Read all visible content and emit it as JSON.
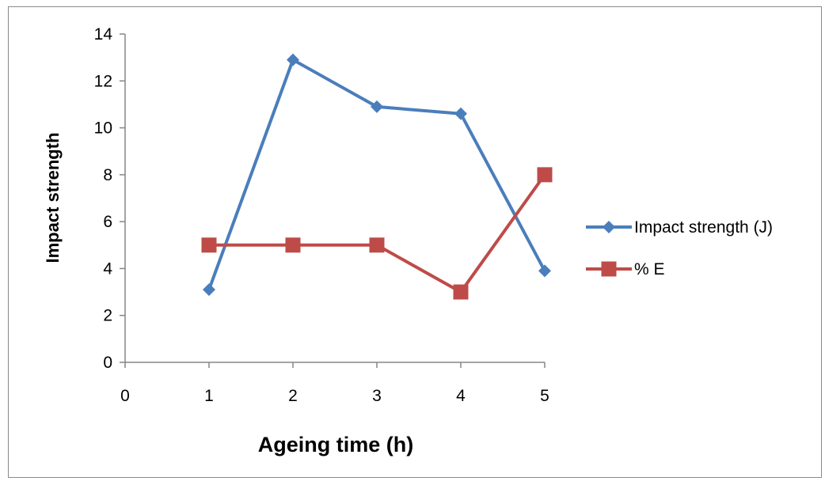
{
  "chart_data": {
    "type": "line",
    "xlabel": "Ageing time (h)",
    "ylabel": "Impact strength",
    "xlim": [
      0,
      5
    ],
    "ylim": [
      0,
      14
    ],
    "xticks": [
      "0",
      "1",
      "2",
      "3",
      "4",
      "5"
    ],
    "yticks": [
      "0",
      "2",
      "4",
      "6",
      "8",
      "10",
      "12",
      "14"
    ],
    "x": [
      1,
      2,
      3,
      4,
      5
    ],
    "series": [
      {
        "name": "Impact strength (J)",
        "values": [
          3.1,
          12.9,
          10.9,
          10.6,
          3.9
        ],
        "color": "#4a7ebb",
        "marker": "diamond"
      },
      {
        "name": "% E",
        "values": [
          5,
          5,
          5,
          3,
          8
        ],
        "color": "#be4b48",
        "marker": "square"
      }
    ],
    "grid": false,
    "legend_position": "right"
  }
}
